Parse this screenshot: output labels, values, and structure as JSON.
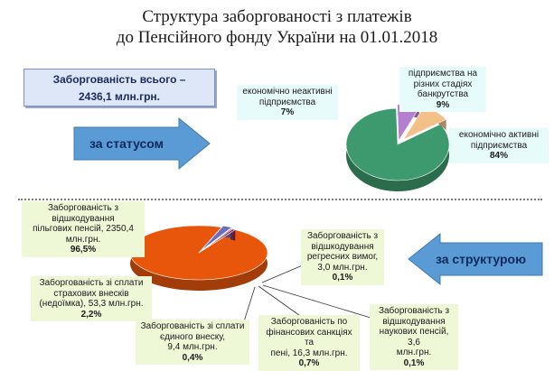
{
  "title_line1": "Структура заборгованості з платежів",
  "title_line2": "до Пенсійного фонду України на 01.01.2018",
  "total": {
    "line1": "Заборгованість всього –",
    "line2": "2436,1 млн.грн."
  },
  "buttons": {
    "by_status": "за статусом",
    "by_structure": "за структурою"
  },
  "colors": {
    "active": "#3d9a6e",
    "inactive": "#b57fd0",
    "bankrupt": "#f4c08a",
    "preferential": "#e8560c",
    "insurance": "#6d6dbf",
    "regress": "#c0392b",
    "scientific": "#2c5faa",
    "single_fee": "#7b2d8e",
    "sanctions": "#8a1f3c",
    "button": "#5b9bd5"
  },
  "chart_data": [
    {
      "type": "pie",
      "title": "за статусом",
      "values": [
        84,
        7,
        9
      ],
      "labels": [
        {
          "name_lines": [
            "економічно активні",
            "підприємства"
          ],
          "value": "84%"
        },
        {
          "name_lines": [
            "економічно неактивні",
            "підприємства"
          ],
          "value": "7%"
        },
        {
          "name_lines": [
            "підприємства на",
            "різних стадіях",
            "банкрутства"
          ],
          "value": "9%"
        }
      ]
    },
    {
      "type": "pie",
      "title": "за структурою",
      "values": [
        96.5,
        2.2,
        0.1,
        0.1,
        0.4,
        0.7
      ],
      "labels": [
        {
          "name_lines": [
            "Заборгованість з",
            "відшкодування",
            "пільгових пенсій, 2350,4",
            "млн.грн."
          ],
          "value": "96,5%"
        },
        {
          "name_lines": [
            "Заборгованість зі сплати",
            "страхових внесків",
            "(недоїмка), 53,3 млн.грн."
          ],
          "value": "2,2%"
        },
        {
          "name_lines": [
            "Заборгованість з",
            "відшкодування",
            "регресних вимог,",
            "3,0 млн.грн."
          ],
          "value": "0,1%"
        },
        {
          "name_lines": [
            "Заборгованість з",
            "відшкодування",
            "наукових пенсій, 3,6",
            "млн.грн."
          ],
          "value": "0,1%"
        },
        {
          "name_lines": [
            "Заборгованість зі сплати",
            "єдиного внеску,",
            "9,4 млн.грн."
          ],
          "value": "0,4%"
        },
        {
          "name_lines": [
            "Заборгованість по",
            "фінансових санкціях та",
            "пені, 16,3 млн.грн."
          ],
          "value": "0,7%"
        }
      ]
    }
  ]
}
